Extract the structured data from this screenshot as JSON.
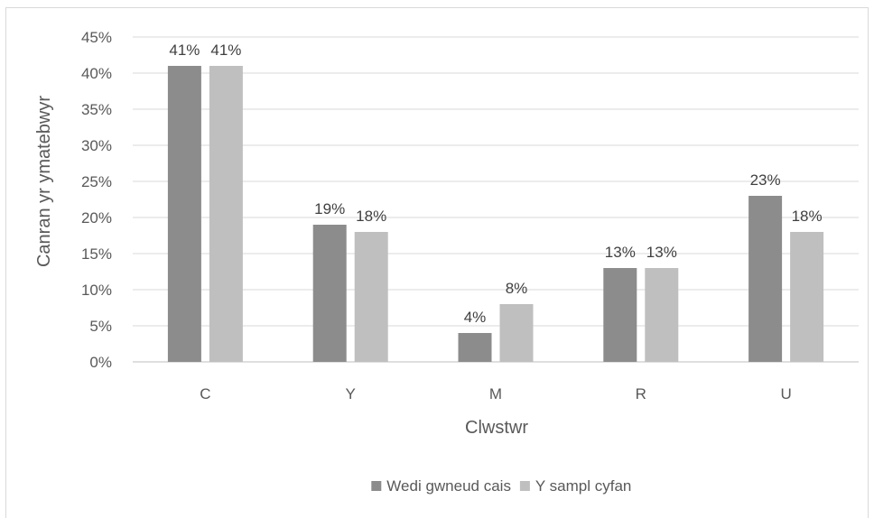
{
  "chart_data": {
    "type": "bar",
    "title": "",
    "xlabel": "Clwstwr",
    "ylabel": "Canran yr ymatebwyr",
    "categories": [
      "C",
      "Y",
      "M",
      "R",
      "U"
    ],
    "series": [
      {
        "name": "Wedi gwneud cais",
        "values": [
          41,
          19,
          4,
          13,
          23
        ],
        "labels": [
          "41%",
          "19%",
          "4%",
          "13%",
          "23%"
        ],
        "color": "#8c8c8c"
      },
      {
        "name": "Y sampl cyfan",
        "values": [
          41,
          18,
          8,
          13,
          18
        ],
        "labels": [
          "41%",
          "18%",
          "8%",
          "13%",
          "18%"
        ],
        "color": "#bfbfbf"
      }
    ],
    "ylim": [
      0,
      45
    ],
    "yticks": [
      0,
      5,
      10,
      15,
      20,
      25,
      30,
      35,
      40,
      45
    ],
    "ytick_labels": [
      "0%",
      "5%",
      "10%",
      "15%",
      "20%",
      "25%",
      "30%",
      "35%",
      "40%",
      "45%"
    ],
    "grid": true,
    "legend_position": "bottom"
  }
}
